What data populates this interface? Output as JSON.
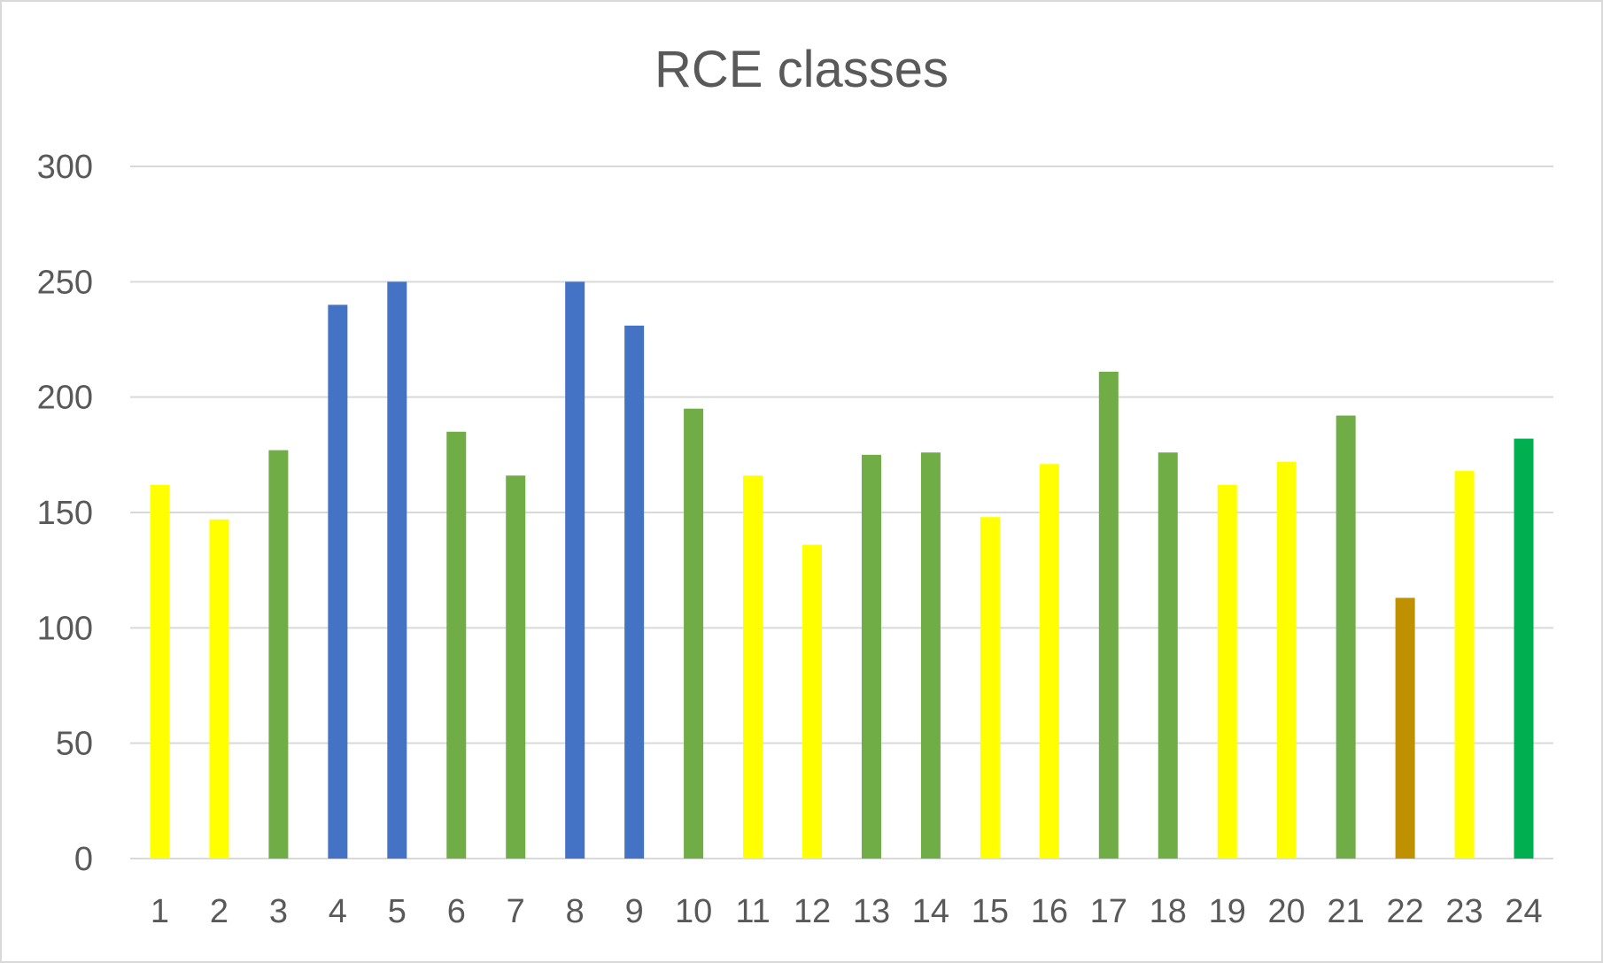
{
  "chart_data": {
    "type": "bar",
    "title": "RCE classes",
    "xlabel": "",
    "ylabel": "",
    "ylim": [
      0,
      300
    ],
    "yticks": [
      0,
      50,
      100,
      150,
      200,
      250,
      300
    ],
    "grid": true,
    "categories": [
      "1",
      "2",
      "3",
      "4",
      "5",
      "6",
      "7",
      "8",
      "9",
      "10",
      "11",
      "12",
      "13",
      "14",
      "15",
      "16",
      "17",
      "18",
      "19",
      "20",
      "21",
      "22",
      "23",
      "24"
    ],
    "values": [
      162,
      147,
      177,
      240,
      250,
      185,
      166,
      250,
      231,
      195,
      166,
      136,
      175,
      176,
      148,
      171,
      211,
      176,
      162,
      172,
      192,
      113,
      168,
      182
    ],
    "bar_colors": [
      "#ffff00",
      "#ffff00",
      "#70ad47",
      "#4472c4",
      "#4472c4",
      "#70ad47",
      "#70ad47",
      "#4472c4",
      "#4472c4",
      "#70ad47",
      "#ffff00",
      "#ffff00",
      "#70ad47",
      "#70ad47",
      "#ffff00",
      "#ffff00",
      "#70ad47",
      "#70ad47",
      "#ffff00",
      "#ffff00",
      "#70ad47",
      "#bf9000",
      "#ffff00",
      "#00b050"
    ]
  },
  "colors": {
    "gridline": "#d9d9d9",
    "text": "#595959"
  }
}
